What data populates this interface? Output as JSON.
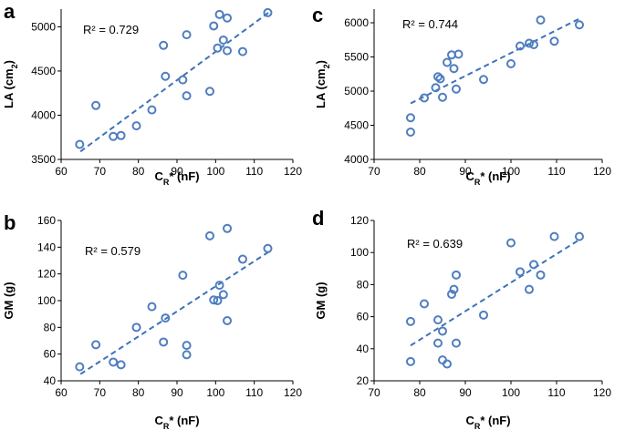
{
  "colors": {
    "marker": "#4F7DC0",
    "trend": "#3F72B8",
    "axis": "#000000"
  },
  "chart_data": [
    {
      "panel_label": "a",
      "type": "scatter",
      "r2_text": "R² = 0.729",
      "xlabel": "C_R* (nF)",
      "ylabel": "LA (cm_2)",
      "xlim": [
        60,
        120
      ],
      "ylim": [
        3500,
        5200
      ],
      "xticks": [
        "60",
        "70",
        "80",
        "90",
        "100",
        "110",
        "120"
      ],
      "yticks": [
        "3500",
        "4000",
        "4500",
        "5000"
      ],
      "points": [
        [
          64.8,
          3670
        ],
        [
          69,
          4110
        ],
        [
          73.5,
          3760
        ],
        [
          75.5,
          3770
        ],
        [
          79.5,
          3880
        ],
        [
          83.5,
          4060
        ],
        [
          86.5,
          4790
        ],
        [
          87,
          4440
        ],
        [
          91.5,
          4400
        ],
        [
          92.5,
          4910
        ],
        [
          92.5,
          4220
        ],
        [
          98.5,
          4270
        ],
        [
          99.5,
          5010
        ],
        [
          100.5,
          4760
        ],
        [
          101,
          5140
        ],
        [
          102,
          4850
        ],
        [
          103,
          4730
        ],
        [
          103,
          5100
        ],
        [
          107,
          4720
        ],
        [
          113.5,
          5160
        ]
      ],
      "trend": [
        [
          65,
          3590
        ],
        [
          114,
          5170
        ]
      ]
    },
    {
      "panel_label": "c",
      "type": "scatter",
      "r2_text": "R² = 0.744",
      "xlabel": "C_R* (nF)",
      "ylabel": "LA (cm_2)",
      "xlim": [
        70,
        120
      ],
      "ylim": [
        4000,
        6200
      ],
      "xticks": [
        "70",
        "80",
        "90",
        "100",
        "110",
        "120"
      ],
      "yticks": [
        "4000",
        "4500",
        "5000",
        "5500",
        "6000"
      ],
      "points": [
        [
          78,
          4610
        ],
        [
          78,
          4400
        ],
        [
          81,
          4900
        ],
        [
          83.5,
          5050
        ],
        [
          84,
          5210
        ],
        [
          84.5,
          5180
        ],
        [
          85,
          4910
        ],
        [
          86,
          5420
        ],
        [
          87,
          5530
        ],
        [
          87.5,
          5330
        ],
        [
          88,
          5030
        ],
        [
          88.5,
          5540
        ],
        [
          94,
          5170
        ],
        [
          100,
          5400
        ],
        [
          102,
          5660
        ],
        [
          104,
          5700
        ],
        [
          105,
          5680
        ],
        [
          106.5,
          6040
        ],
        [
          109.5,
          5730
        ],
        [
          115,
          5970
        ]
      ],
      "trend": [
        [
          78,
          4820
        ],
        [
          115,
          6060
        ]
      ]
    },
    {
      "panel_label": "b",
      "type": "scatter",
      "r2_text": "R² = 0.579",
      "xlabel": "C_R* (nF)",
      "ylabel": "GM (g)",
      "xlim": [
        60,
        120
      ],
      "ylim": [
        40,
        160
      ],
      "xticks": [
        "60",
        "70",
        "80",
        "90",
        "100",
        "110",
        "120"
      ],
      "yticks": [
        "40",
        "60",
        "80",
        "100",
        "120",
        "140",
        "160"
      ],
      "points": [
        [
          64.8,
          50.5
        ],
        [
          69,
          67
        ],
        [
          73.5,
          54
        ],
        [
          75.5,
          52
        ],
        [
          79.5,
          80
        ],
        [
          83.5,
          95.5
        ],
        [
          86.5,
          69
        ],
        [
          87,
          87
        ],
        [
          91.5,
          119
        ],
        [
          92.5,
          66.5
        ],
        [
          92.5,
          59.5
        ],
        [
          98.5,
          148.5
        ],
        [
          99.5,
          100.5
        ],
        [
          100.5,
          100
        ],
        [
          101,
          111.5
        ],
        [
          102,
          104.5
        ],
        [
          103,
          85
        ],
        [
          103,
          154
        ],
        [
          107,
          131
        ],
        [
          113.5,
          139
        ]
      ],
      "trend": [
        [
          65,
          45
        ],
        [
          114,
          137
        ]
      ]
    },
    {
      "panel_label": "d",
      "type": "scatter",
      "r2_text": "R² = 0.639",
      "xlabel": "C_R* (nF)",
      "ylabel": "GM (g)",
      "xlim": [
        70,
        120
      ],
      "ylim": [
        20,
        120
      ],
      "xticks": [
        "70",
        "80",
        "90",
        "100",
        "110",
        "120"
      ],
      "yticks": [
        "20",
        "40",
        "60",
        "80",
        "100",
        "120"
      ],
      "points": [
        [
          78,
          57
        ],
        [
          78,
          32
        ],
        [
          81,
          68
        ],
        [
          84,
          58
        ],
        [
          84,
          43.5
        ],
        [
          85,
          51
        ],
        [
          85,
          33
        ],
        [
          86,
          30.5
        ],
        [
          87,
          74
        ],
        [
          87.5,
          77
        ],
        [
          88,
          86
        ],
        [
          88,
          43.5
        ],
        [
          94,
          61
        ],
        [
          100,
          106
        ],
        [
          102,
          88
        ],
        [
          104,
          77
        ],
        [
          105,
          92.5
        ],
        [
          106.5,
          86
        ],
        [
          109.5,
          110
        ],
        [
          115,
          110
        ]
      ],
      "trend": [
        [
          78,
          42
        ],
        [
          115,
          108
        ]
      ]
    }
  ]
}
